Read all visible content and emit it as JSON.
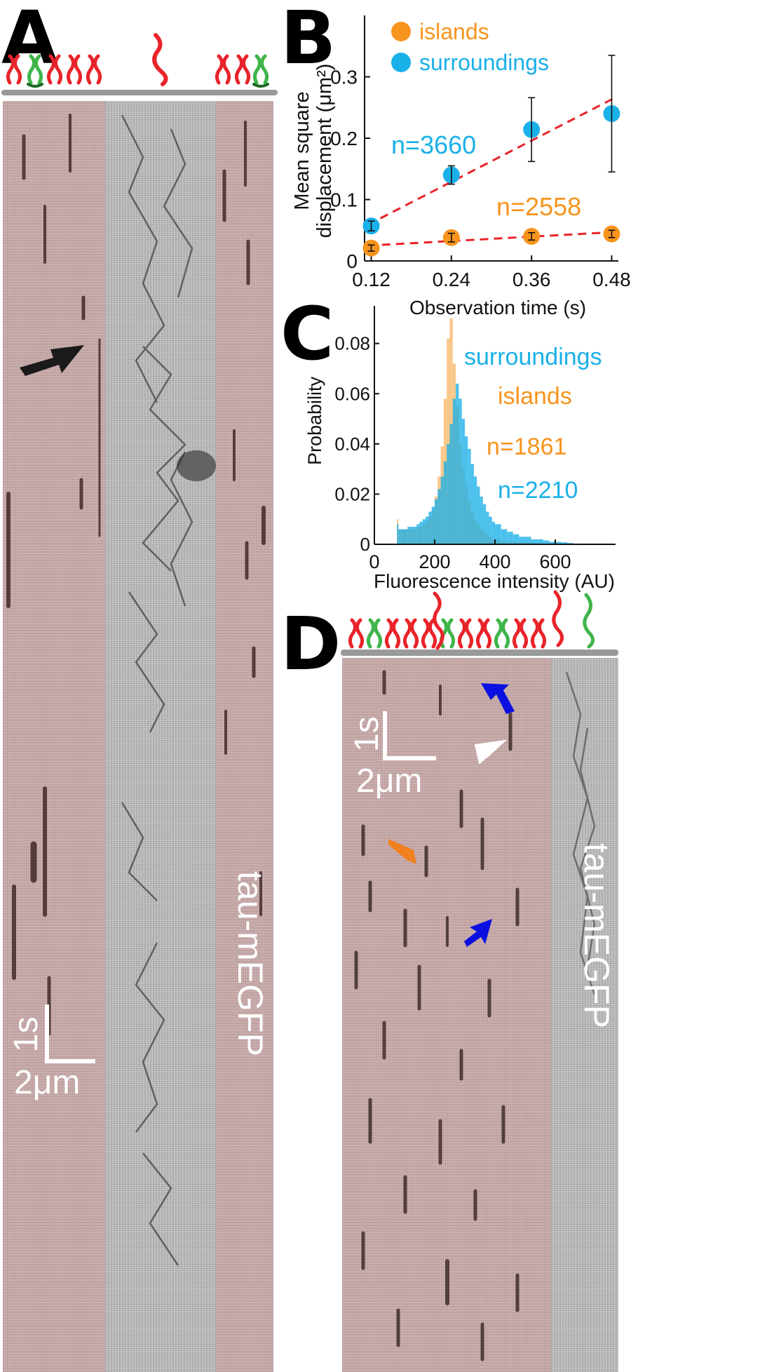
{
  "panels": {
    "a": {
      "letter": "A",
      "kymo_label": "tau-mEGFP",
      "scale_time": "1s",
      "scale_length": "2μm"
    },
    "b": {
      "letter": "B",
      "legend": [
        "islands",
        "surroundings"
      ],
      "annotations": [
        "n=3660",
        "n=2558"
      ]
    },
    "c": {
      "letter": "C",
      "annotations": [
        "surroundings",
        "islands",
        "n=1861",
        "n=2210"
      ]
    },
    "d": {
      "letter": "D",
      "kymo_label": "tau-mEGFP",
      "scale_time": "1s",
      "scale_length": "2μm"
    }
  },
  "colors": {
    "islands": "#f7941d",
    "surroundings": "#1ab0e8",
    "fit": "#e8242a",
    "arrow_blue": "#0b10e0",
    "arrow_orange": "#f08020",
    "arrow_white": "#ffffff",
    "lipid_red": "#e8242a",
    "lipid_green": "#3fb44a"
  },
  "chart_data": [
    {
      "type": "scatter",
      "ylabel": "Mean square\ndisplacement (μm²)",
      "xlabel": "Observation time (s)",
      "x": [
        0.12,
        0.24,
        0.36,
        0.48
      ],
      "xticks": [
        "0.12",
        "0.24",
        "0.36",
        "0.48"
      ],
      "yticks": [
        "0",
        "0.1",
        "0.2",
        "0.3"
      ],
      "xlim": [
        0.11,
        0.49
      ],
      "ylim": [
        0,
        0.4
      ],
      "series": [
        {
          "name": "islands",
          "y": [
            0.021,
            0.038,
            0.04,
            0.044
          ],
          "err": [
            0.005,
            0.007,
            0.006,
            0.006
          ],
          "fit": [
            0.025,
            0.047
          ]
        },
        {
          "name": "surroundings",
          "y": [
            0.057,
            0.14,
            0.214,
            0.24
          ],
          "err": [
            0.008,
            0.015,
            0.052,
            0.095
          ],
          "fit": [
            0.059,
            0.266
          ]
        }
      ]
    },
    {
      "type": "bar",
      "ylabel": "Probability",
      "xlabel": "Fluorescence intensity (AU)",
      "xticks": [
        "0",
        "200",
        "400",
        "600"
      ],
      "yticks": [
        "0",
        "0.02",
        "0.04",
        "0.06",
        "0.08"
      ],
      "xlim": [
        0,
        800
      ],
      "ylim": [
        0,
        0.095
      ],
      "bin_width": 10,
      "series": [
        {
          "name": "islands",
          "values": [
            [
              70,
              0.0
            ],
            [
              75,
              0.01
            ],
            [
              80,
              0.006
            ],
            [
              90,
              0.006
            ],
            [
              100,
              0.006
            ],
            [
              110,
              0.006
            ],
            [
              120,
              0.006
            ],
            [
              130,
              0.006
            ],
            [
              140,
              0.007
            ],
            [
              150,
              0.007
            ],
            [
              160,
              0.008
            ],
            [
              170,
              0.009
            ],
            [
              180,
              0.011
            ],
            [
              190,
              0.014
            ],
            [
              200,
              0.019
            ],
            [
              210,
              0.027
            ],
            [
              220,
              0.039
            ],
            [
              230,
              0.058
            ],
            [
              240,
              0.082
            ],
            [
              250,
              0.09
            ],
            [
              260,
              0.072
            ],
            [
              270,
              0.055
            ],
            [
              280,
              0.04
            ],
            [
              290,
              0.03
            ],
            [
              300,
              0.023
            ],
            [
              310,
              0.017
            ],
            [
              320,
              0.013
            ],
            [
              330,
              0.01
            ],
            [
              340,
              0.008
            ],
            [
              350,
              0.006
            ],
            [
              360,
              0.005
            ],
            [
              370,
              0.004
            ],
            [
              380,
              0.003
            ],
            [
              390,
              0.002
            ],
            [
              400,
              0.002
            ],
            [
              420,
              0.001
            ],
            [
              450,
              0.001
            ],
            [
              500,
              0.0005
            ],
            [
              550,
              0.0002
            ],
            [
              600,
              0.0
            ]
          ]
        },
        {
          "name": "surroundings",
          "values": [
            [
              70,
              0.0
            ],
            [
              75,
              0.008
            ],
            [
              80,
              0.006
            ],
            [
              90,
              0.006
            ],
            [
              100,
              0.006
            ],
            [
              110,
              0.007
            ],
            [
              120,
              0.007
            ],
            [
              130,
              0.007
            ],
            [
              140,
              0.008
            ],
            [
              150,
              0.009
            ],
            [
              160,
              0.01
            ],
            [
              170,
              0.011
            ],
            [
              180,
              0.013
            ],
            [
              190,
              0.015
            ],
            [
              200,
              0.018
            ],
            [
              210,
              0.022
            ],
            [
              220,
              0.027
            ],
            [
              230,
              0.033
            ],
            [
              240,
              0.04
            ],
            [
              250,
              0.048
            ],
            [
              260,
              0.058
            ],
            [
              270,
              0.064
            ],
            [
              280,
              0.058
            ],
            [
              290,
              0.05
            ],
            [
              300,
              0.043
            ],
            [
              310,
              0.038
            ],
            [
              320,
              0.032
            ],
            [
              330,
              0.027
            ],
            [
              340,
              0.023
            ],
            [
              350,
              0.019
            ],
            [
              360,
              0.016
            ],
            [
              370,
              0.013
            ],
            [
              380,
              0.011
            ],
            [
              390,
              0.009
            ],
            [
              400,
              0.008
            ],
            [
              420,
              0.006
            ],
            [
              440,
              0.005
            ],
            [
              460,
              0.004
            ],
            [
              480,
              0.003
            ],
            [
              500,
              0.003
            ],
            [
              520,
              0.002
            ],
            [
              540,
              0.002
            ],
            [
              560,
              0.0015
            ],
            [
              580,
              0.001
            ],
            [
              600,
              0.001
            ],
            [
              620,
              0.0008
            ],
            [
              640,
              0.0005
            ],
            [
              660,
              0.0003
            ],
            [
              680,
              0.0002
            ],
            [
              700,
              0.0
            ]
          ]
        }
      ]
    }
  ]
}
